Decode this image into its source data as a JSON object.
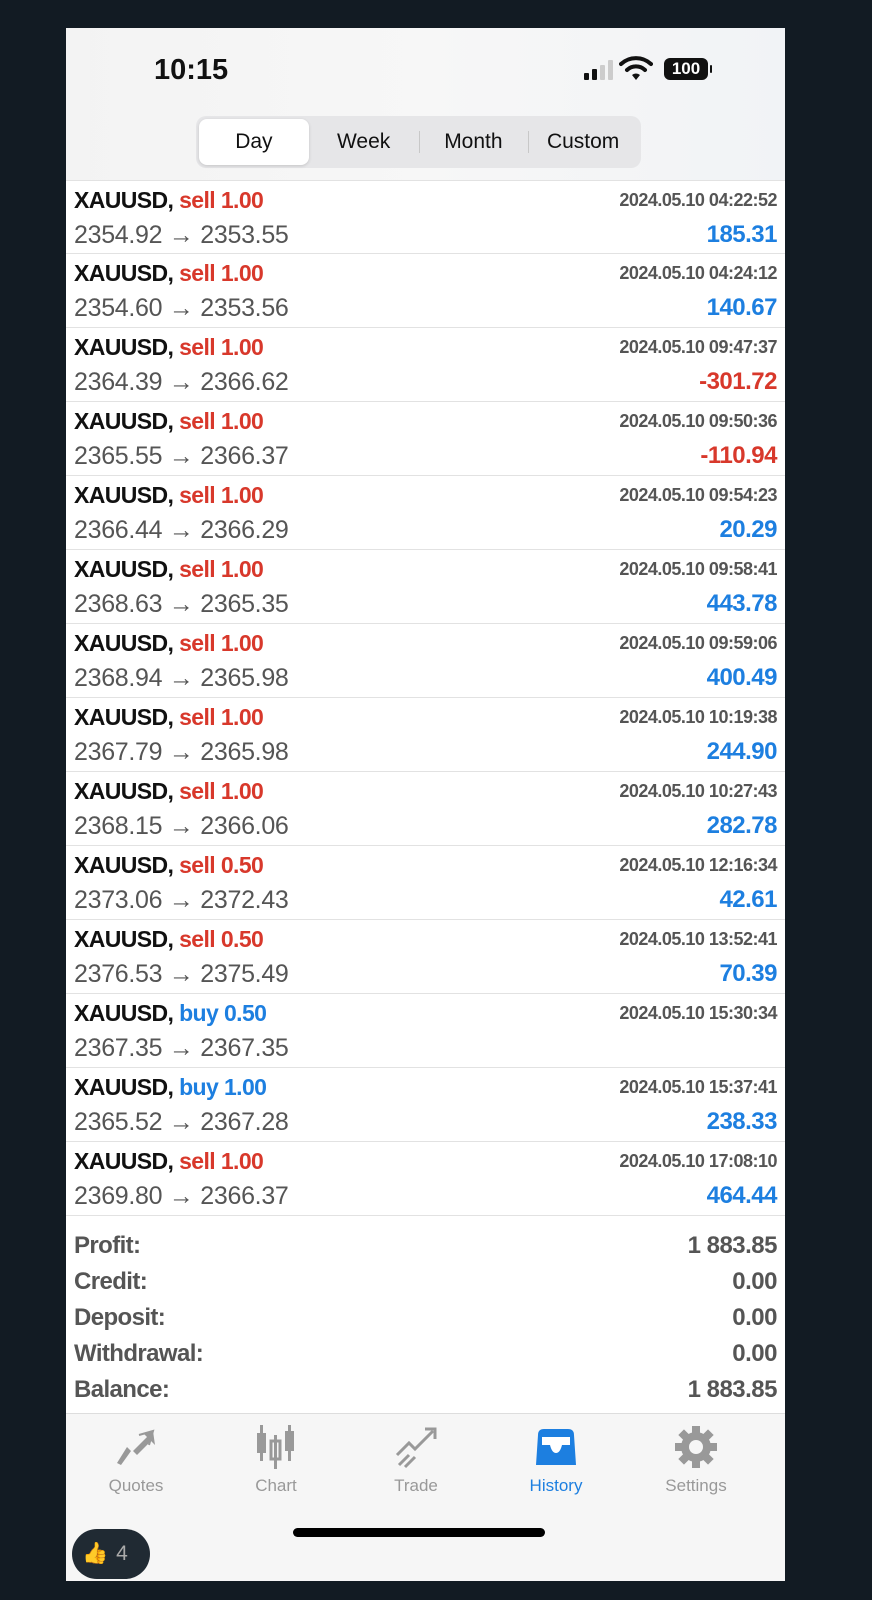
{
  "status_bar": {
    "time": "10:15",
    "battery": "100"
  },
  "segments": [
    {
      "label": "Day",
      "active": true
    },
    {
      "label": "Week"
    },
    {
      "label": "Month"
    },
    {
      "label": "Custom"
    }
  ],
  "deals": [
    {
      "symbol": "XAUUSD,",
      "side": "sell 1.00",
      "type": "sell",
      "time": "2024.05.10 04:22:52",
      "prices": "2354.92 → 2353.55",
      "profit": "185.31",
      "sign": "pos"
    },
    {
      "symbol": "XAUUSD,",
      "side": "sell 1.00",
      "type": "sell",
      "time": "2024.05.10 04:24:12",
      "prices": "2354.60 → 2353.56",
      "profit": "140.67",
      "sign": "pos"
    },
    {
      "symbol": "XAUUSD,",
      "side": "sell 1.00",
      "type": "sell",
      "time": "2024.05.10 09:47:37",
      "prices": "2364.39 → 2366.62",
      "profit": "-301.72",
      "sign": "neg"
    },
    {
      "symbol": "XAUUSD,",
      "side": "sell 1.00",
      "type": "sell",
      "time": "2024.05.10 09:50:36",
      "prices": "2365.55 → 2366.37",
      "profit": "-110.94",
      "sign": "neg"
    },
    {
      "symbol": "XAUUSD,",
      "side": "sell 1.00",
      "type": "sell",
      "time": "2024.05.10 09:54:23",
      "prices": "2366.44 → 2366.29",
      "profit": "20.29",
      "sign": "pos"
    },
    {
      "symbol": "XAUUSD,",
      "side": "sell 1.00",
      "type": "sell",
      "time": "2024.05.10 09:58:41",
      "prices": "2368.63 → 2365.35",
      "profit": "443.78",
      "sign": "pos"
    },
    {
      "symbol": "XAUUSD,",
      "side": "sell 1.00",
      "type": "sell",
      "time": "2024.05.10 09:59:06",
      "prices": "2368.94 → 2365.98",
      "profit": "400.49",
      "sign": "pos"
    },
    {
      "symbol": "XAUUSD,",
      "side": "sell 1.00",
      "type": "sell",
      "time": "2024.05.10 10:19:38",
      "prices": "2367.79 → 2365.98",
      "profit": "244.90",
      "sign": "pos"
    },
    {
      "symbol": "XAUUSD,",
      "side": "sell 1.00",
      "type": "sell",
      "time": "2024.05.10 10:27:43",
      "prices": "2368.15 → 2366.06",
      "profit": "282.78",
      "sign": "pos"
    },
    {
      "symbol": "XAUUSD,",
      "side": "sell 0.50",
      "type": "sell",
      "time": "2024.05.10 12:16:34",
      "prices": "2373.06 → 2372.43",
      "profit": "42.61",
      "sign": "pos"
    },
    {
      "symbol": "XAUUSD,",
      "side": "sell 0.50",
      "type": "sell",
      "time": "2024.05.10 13:52:41",
      "prices": "2376.53 → 2375.49",
      "profit": "70.39",
      "sign": "pos"
    },
    {
      "symbol": "XAUUSD,",
      "side": "buy 0.50",
      "type": "buy",
      "time": "2024.05.10 15:30:34",
      "prices": "2367.35 → 2367.35",
      "profit": "",
      "sign": "pos"
    },
    {
      "symbol": "XAUUSD,",
      "side": "buy 1.00",
      "type": "buy",
      "time": "2024.05.10 15:37:41",
      "prices": "2365.52 → 2367.28",
      "profit": "238.33",
      "sign": "pos"
    },
    {
      "symbol": "XAUUSD,",
      "side": "sell 1.00",
      "type": "sell",
      "time": "2024.05.10 17:08:10",
      "prices": "2369.80 → 2366.37",
      "profit": "464.44",
      "sign": "pos"
    }
  ],
  "summary": [
    {
      "label": "Profit:",
      "value": "1 883.85"
    },
    {
      "label": "Credit:",
      "value": "0.00"
    },
    {
      "label": "Deposit:",
      "value": "0.00"
    },
    {
      "label": "Withdrawal:",
      "value": "0.00"
    },
    {
      "label": "Balance:",
      "value": "1 883.85"
    }
  ],
  "tabs": [
    {
      "label": "Quotes",
      "icon": "quotes-icon"
    },
    {
      "label": "Chart",
      "icon": "candlestick-icon"
    },
    {
      "label": "Trade",
      "icon": "trade-icon"
    },
    {
      "label": "History",
      "icon": "inbox-icon",
      "active": true
    },
    {
      "label": "Settings",
      "icon": "gear-icon"
    }
  ],
  "colors": {
    "sell": "#d8382b",
    "buy": "#1d7fe0",
    "active_tab": "#1d7fe0"
  },
  "reaction": {
    "emoji": "👍",
    "count": "4"
  }
}
